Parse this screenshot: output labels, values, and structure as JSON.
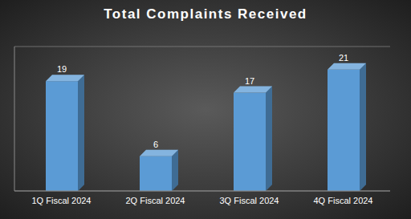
{
  "chart_data": {
    "type": "bar",
    "title": "Total Complaints Received",
    "categories": [
      "1Q Fiscal 2024",
      "2Q Fiscal 2024",
      "3Q Fiscal 2024",
      "4Q Fiscal 2024"
    ],
    "values": [
      19,
      6,
      17,
      21
    ],
    "color": "#5b9bd5",
    "ylim": [
      0,
      25
    ],
    "yticks": [
      0,
      5,
      10,
      15,
      20,
      25
    ],
    "grid": true,
    "data_labels": true,
    "tick_labels": "x"
  }
}
